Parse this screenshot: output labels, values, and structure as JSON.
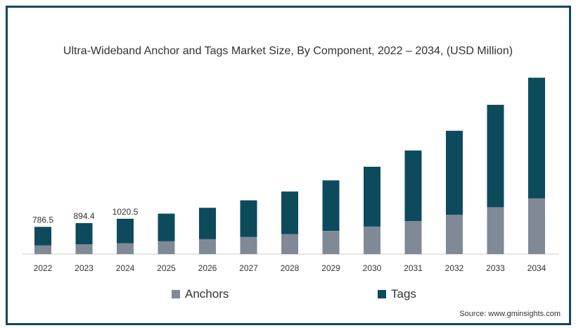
{
  "chart_data": {
    "type": "bar",
    "stacked": true,
    "title": "Ultra-Wideband Anchor and Tags Market Size, By Component, 2022 – 2034, (USD Million)",
    "categories": [
      "2022",
      "2023",
      "2024",
      "2025",
      "2026",
      "2027",
      "2028",
      "2029",
      "2030",
      "2031",
      "2032",
      "2033",
      "2034"
    ],
    "series": [
      {
        "name": "Anchors",
        "color": "#7f8a96",
        "values": [
          250,
          282,
          315,
          370,
          428,
          495,
          580,
          670,
          795,
          955,
          1135,
          1355,
          1610
        ]
      },
      {
        "name": "Tags",
        "color": "#0d4a5c",
        "values": [
          536.5,
          612.4,
          705.5,
          800,
          910,
          1060,
          1230,
          1460,
          1730,
          2040,
          2430,
          2960,
          3490
        ]
      }
    ],
    "data_labels": [
      "786.5",
      "894.4",
      "1020.5"
    ],
    "ylim": [
      0,
      5250
    ],
    "grid": false,
    "legend_position": "bottom"
  },
  "source": "Source: www.gminsights.com"
}
